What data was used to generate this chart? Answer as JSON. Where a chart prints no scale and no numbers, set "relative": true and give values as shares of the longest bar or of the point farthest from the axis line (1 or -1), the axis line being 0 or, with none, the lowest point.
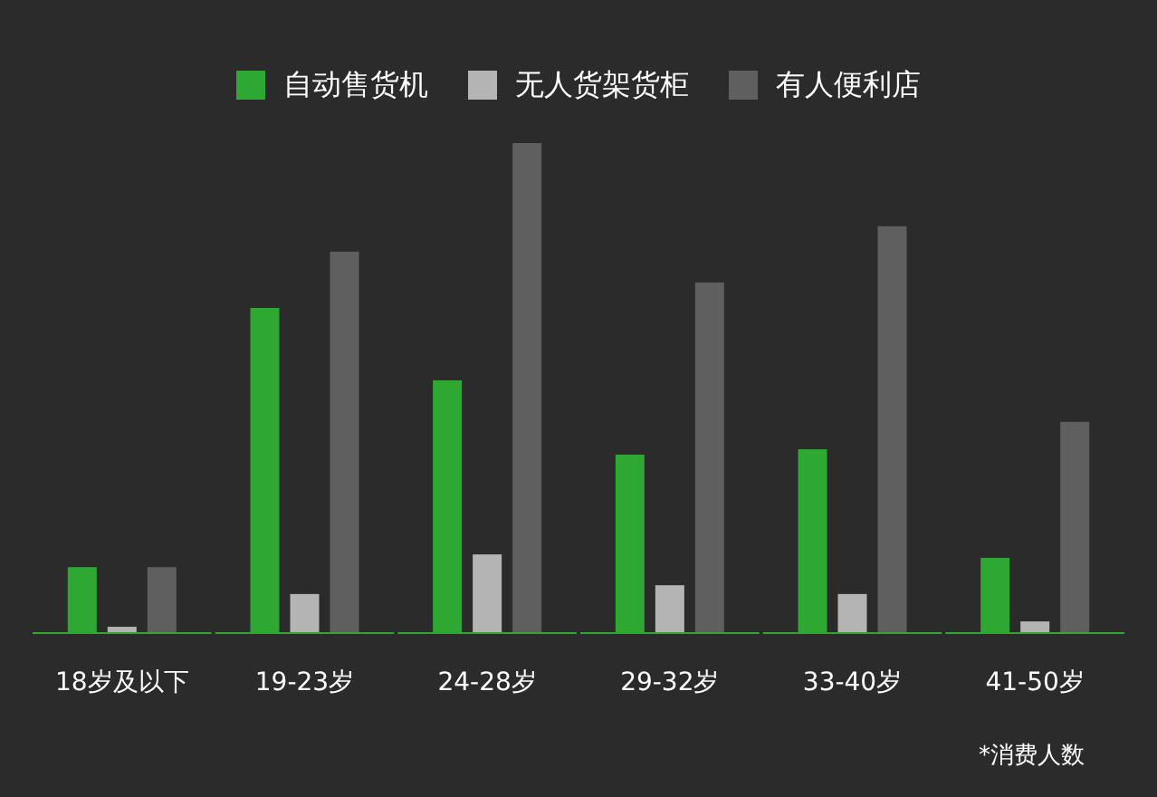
{
  "chart_data": {
    "type": "bar",
    "relative": true,
    "categories": [
      "18岁及以下",
      "19-23岁",
      "24-28岁",
      "29-32岁",
      "33-40岁",
      "41-50岁"
    ],
    "series": [
      {
        "name": "自动售货机",
        "color": "#2ea832",
        "values": [
          0.133,
          0.663,
          0.515,
          0.363,
          0.374,
          0.152
        ]
      },
      {
        "name": "无人货架货柜",
        "color": "#b4b4b4",
        "values": [
          0.011,
          0.078,
          0.159,
          0.096,
          0.078,
          0.022
        ]
      },
      {
        "name": "有人便利店",
        "color": "#5f5f5f",
        "values": [
          0.133,
          0.778,
          1,
          0.715,
          0.83,
          0.43
        ]
      }
    ],
    "legend": "top",
    "annotations": [
      "*消费人数"
    ]
  }
}
